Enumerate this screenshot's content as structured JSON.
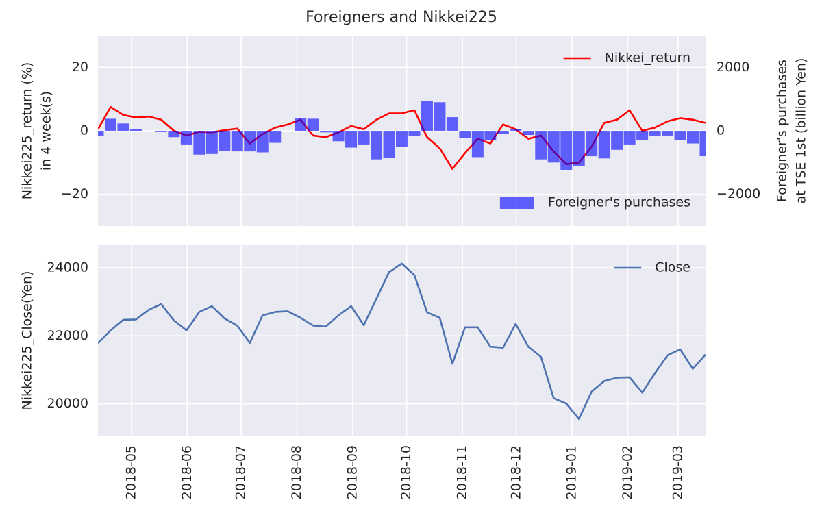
{
  "chart_data": [
    {
      "type": "combo",
      "title": "Foreigners and Nikkei225",
      "ylabel": [
        "Nikkei225_return (%)",
        "in 4 week(s)"
      ],
      "y2label": [
        "Foreigner's purchases",
        "at TSE 1st (billion Yen)"
      ],
      "ylim": [
        -30,
        30
      ],
      "yticks": [
        20,
        0,
        {
          "value": -20,
          "label": "−20"
        }
      ],
      "y2lim": [
        -3000,
        3000
      ],
      "y2ticks": [
        2000,
        0,
        {
          "value": -2000,
          "label": "−2000"
        }
      ],
      "grid": true,
      "series": [
        {
          "name": "Nikkei_return",
          "type": "line",
          "color": "#ff0000",
          "legend": "upper right",
          "values": [
            0.5,
            7.5,
            5,
            4.2,
            4.5,
            3.5,
            0,
            -1.5,
            -0.3,
            -0.5,
            0.2,
            0.7,
            -4,
            -1,
            1,
            2,
            3.5,
            -1.5,
            -2,
            -0.5,
            1.5,
            0.5,
            3.5,
            5.5,
            5.5,
            6.5,
            -2,
            -5.5,
            -12,
            -7,
            -2.5,
            -4,
            2,
            0.5,
            -2.5,
            -1.5,
            -6.5,
            -10.5,
            -10,
            -5,
            2.5,
            3.5,
            6.5,
            0,
            1,
            3,
            4,
            3.5,
            2.5
          ]
        },
        {
          "name": "Foreigner's purchases",
          "type": "bar",
          "axis": "y2",
          "color": "#0000ff",
          "legend": "lower right",
          "values": [
            -150,
            380,
            230,
            50,
            0,
            -20,
            -200,
            -430,
            -750,
            -730,
            -630,
            -650,
            -650,
            -680,
            -380,
            0,
            400,
            380,
            -50,
            -330,
            -530,
            -430,
            -900,
            -850,
            -500,
            -150,
            930,
            900,
            430,
            -230,
            -830,
            -300,
            -100,
            50,
            -130,
            -900,
            -1000,
            -1230,
            -1100,
            -800,
            -870,
            -600,
            -430,
            -300,
            -150,
            -150,
            -300,
            -400,
            -800
          ]
        }
      ]
    },
    {
      "type": "line",
      "ylabel": [
        "Nikkei225_Close(Yen)"
      ],
      "ylim": [
        19070,
        24660
      ],
      "yticks": [
        20000,
        22000,
        24000
      ],
      "grid": true,
      "xticks": [
        "2018-05",
        "2018-06",
        "2018-07",
        "2018-08",
        "2018-09",
        "2018-10",
        "2018-11",
        "2018-12",
        "2019-01",
        "2019-02",
        "2019-03"
      ],
      "series": [
        {
          "name": "Close",
          "type": "line",
          "color": "#4c72b0",
          "legend": "upper right",
          "values": [
            21780,
            22160,
            22470,
            22480,
            22760,
            22930,
            22450,
            22160,
            22700,
            22870,
            22510,
            22300,
            21790,
            22600,
            22700,
            22720,
            22530,
            22300,
            22270,
            22600,
            22870,
            22310,
            23090,
            23870,
            24120,
            23780,
            22690,
            22530,
            21180,
            22250,
            22250,
            21680,
            21650,
            22350,
            21680,
            21380,
            20170,
            20010,
            19560,
            20360,
            20670,
            20770,
            20780,
            20330,
            20900,
            21430,
            21600,
            21030,
            21450
          ]
        }
      ]
    }
  ]
}
